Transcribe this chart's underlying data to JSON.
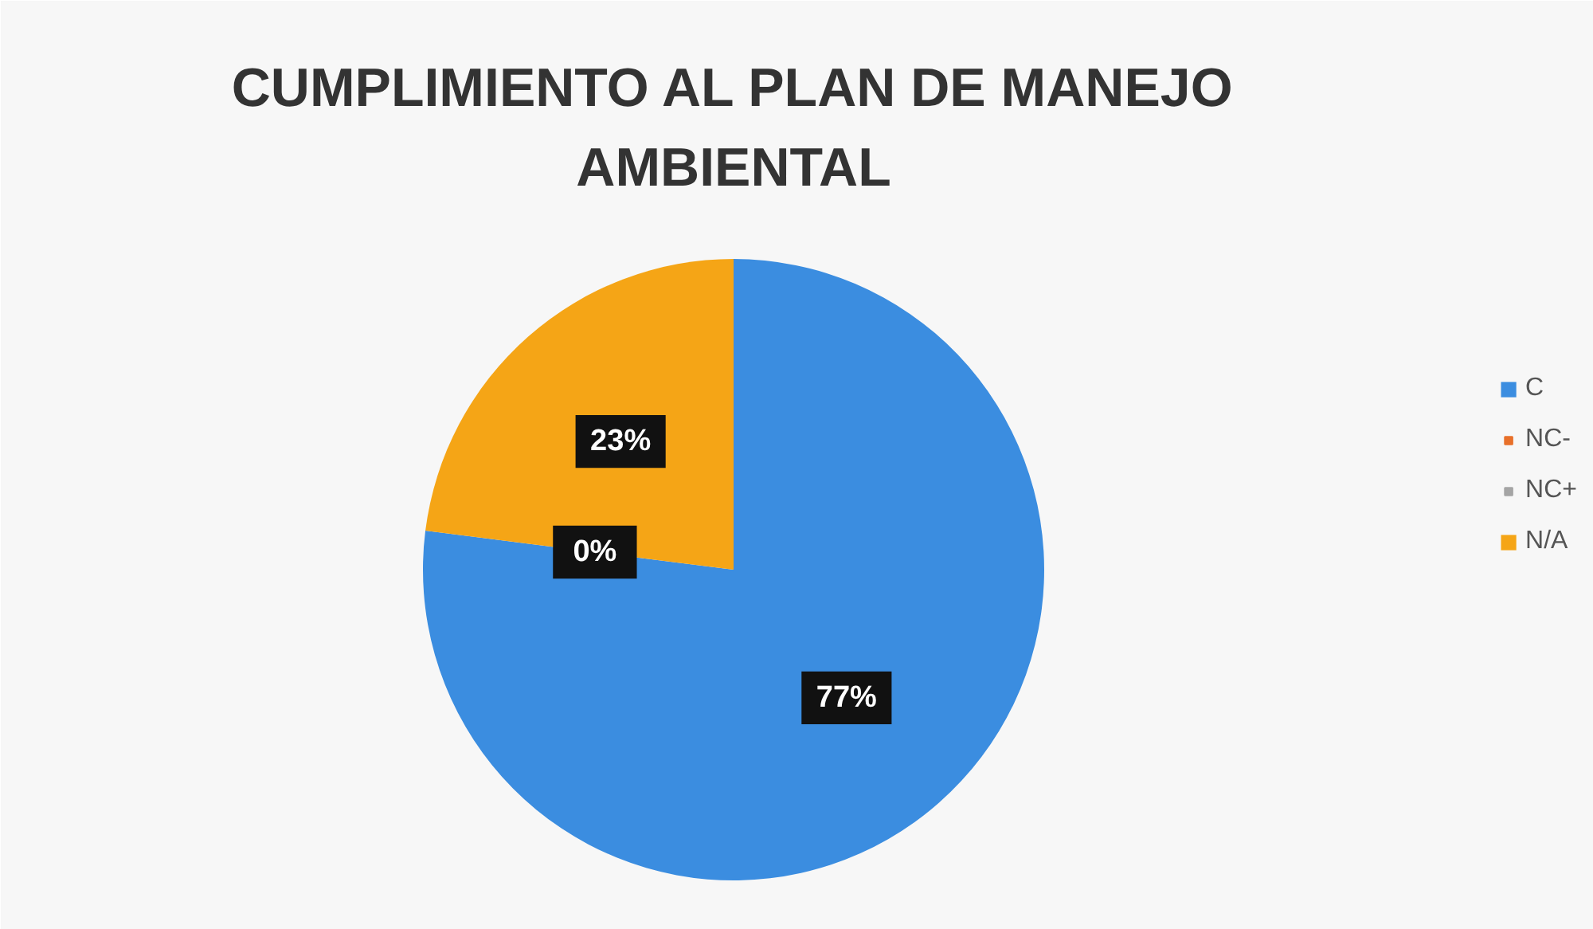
{
  "chart_data": {
    "type": "pie",
    "title": "CUMPLIMIENTO AL PLAN DE MANEJO AMBIENTAL",
    "categories": [
      "C",
      "NC-",
      "NC+",
      "N/A"
    ],
    "values": [
      77,
      0,
      0,
      23
    ],
    "colors": [
      "#3b8de0",
      "#e8702a",
      "#a5a5a5",
      "#f5a516"
    ],
    "value_labels": [
      "77%",
      "0%",
      null,
      "23%"
    ],
    "legend": "right"
  }
}
